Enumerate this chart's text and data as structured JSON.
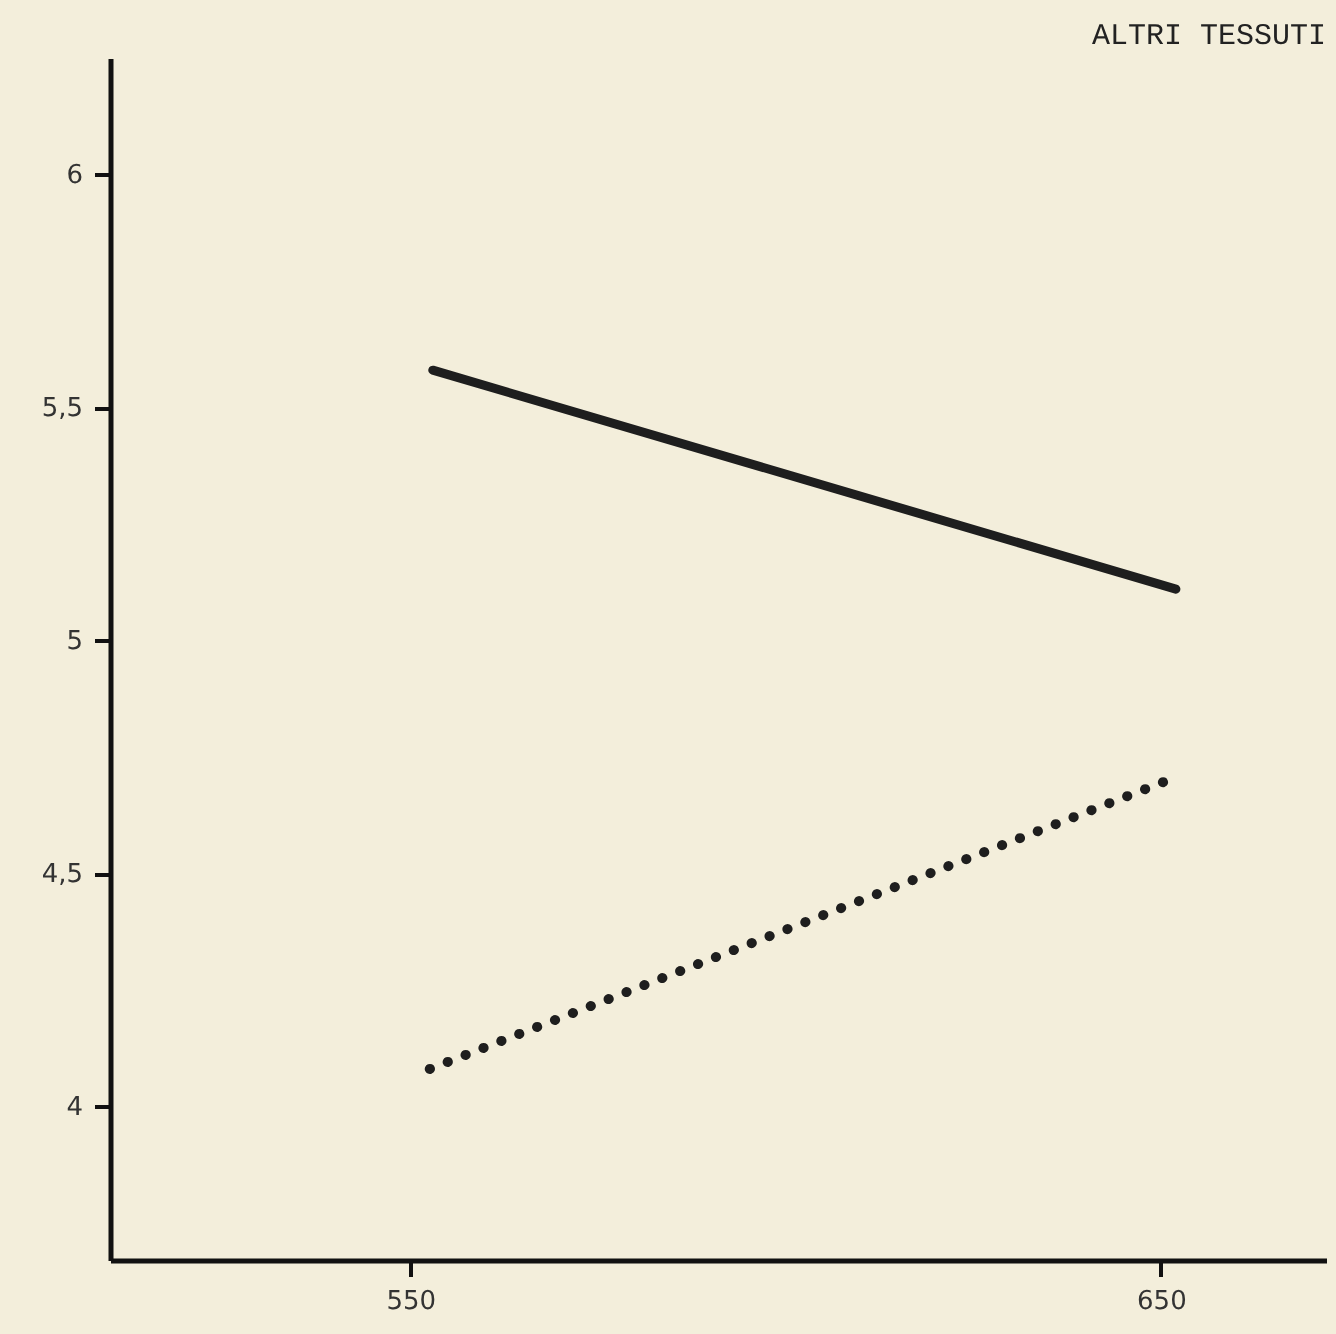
{
  "chart_data": {
    "type": "line",
    "title": "ALTRI TESSUTI",
    "series": [
      {
        "color": "#1e1e1e",
        "x": [
          553,
          652
        ],
        "values": [
          5.58,
          5.11
        ],
        "line_style": "solid"
      },
      {
        "color": "#1e1e1e",
        "x": [
          552.6,
          651
        ],
        "values": [
          4.08,
          4.7
        ],
        "line_style": "dotted"
      }
    ],
    "xlim": [
      510,
      672
    ],
    "xticks": [
      550,
      650
    ],
    "ylim": [
      3.67,
      6.25
    ],
    "yticks": [
      {
        "value": 4,
        "label": "4"
      },
      {
        "value": 4.5,
        "label": "4,5"
      },
      {
        "value": 5,
        "label": "5"
      },
      {
        "value": 5.5,
        "label": "5,5"
      },
      {
        "value": 6,
        "label": "6"
      }
    ],
    "grid": false
  }
}
